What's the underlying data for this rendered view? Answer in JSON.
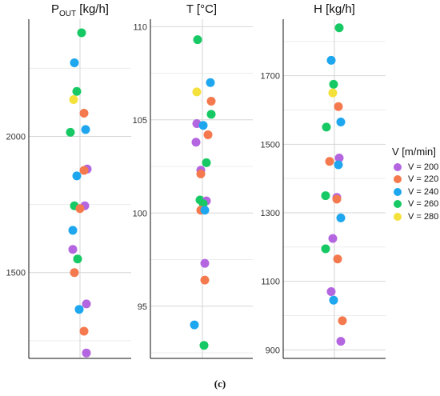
{
  "series_colors": {
    "200": "#b366e0",
    "220": "#f4794e",
    "240": "#1ea6ee",
    "260": "#17c964",
    "280": "#f5e13c"
  },
  "legend": {
    "title": "V [m/min]",
    "entries": [
      {
        "key": "200",
        "label": "V = 200"
      },
      {
        "key": "220",
        "label": "V = 220"
      },
      {
        "key": "240",
        "label": "V = 240"
      },
      {
        "key": "260",
        "label": "V = 260"
      },
      {
        "key": "280",
        "label": "V = 280"
      }
    ]
  },
  "caption": "(c)",
  "chart_data": [
    {
      "type": "scatter",
      "title_main": "P",
      "title_sub": "OUT",
      "title_unit": " [kg/h]",
      "ylim": [
        1185,
        2430
      ],
      "yticks": [
        1500,
        2000
      ],
      "ytick_labels": [
        "1500",
        "2000"
      ],
      "points": [
        {
          "series": "260",
          "value": 2380
        },
        {
          "series": "240",
          "value": 2270
        },
        {
          "series": "260",
          "value": 2165
        },
        {
          "series": "280",
          "value": 2135
        },
        {
          "series": "220",
          "value": 2085
        },
        {
          "series": "240",
          "value": 2025
        },
        {
          "series": "260",
          "value": 2015
        },
        {
          "series": "200",
          "value": 1880
        },
        {
          "series": "220",
          "value": 1875
        },
        {
          "series": "240",
          "value": 1855
        },
        {
          "series": "260",
          "value": 1745
        },
        {
          "series": "200",
          "value": 1745
        },
        {
          "series": "220",
          "value": 1735
        },
        {
          "series": "240",
          "value": 1655
        },
        {
          "series": "200",
          "value": 1585
        },
        {
          "series": "260",
          "value": 1550
        },
        {
          "series": "220",
          "value": 1500
        },
        {
          "series": "200",
          "value": 1385
        },
        {
          "series": "240",
          "value": 1365
        },
        {
          "series": "220",
          "value": 1285
        },
        {
          "series": "200",
          "value": 1205
        }
      ]
    },
    {
      "type": "scatter",
      "title_main": "T [°C]",
      "title_sub": "",
      "title_unit": "",
      "ylim": [
        92.2,
        110.4
      ],
      "yticks": [
        95,
        100,
        105,
        110
      ],
      "ytick_labels": [
        "95",
        "100",
        "105",
        "110"
      ],
      "points": [
        {
          "series": "260",
          "value": 109.3
        },
        {
          "series": "240",
          "value": 107.0
        },
        {
          "series": "280",
          "value": 106.5
        },
        {
          "series": "220",
          "value": 106.0
        },
        {
          "series": "260",
          "value": 105.3
        },
        {
          "series": "200",
          "value": 104.8
        },
        {
          "series": "240",
          "value": 104.7
        },
        {
          "series": "220",
          "value": 104.2
        },
        {
          "series": "200",
          "value": 103.8
        },
        {
          "series": "260",
          "value": 102.7
        },
        {
          "series": "200",
          "value": 102.3
        },
        {
          "series": "220",
          "value": 102.1
        },
        {
          "series": "260",
          "value": 100.7
        },
        {
          "series": "200",
          "value": 100.65
        },
        {
          "series": "260",
          "value": 100.5
        },
        {
          "series": "220",
          "value": 100.15
        },
        {
          "series": "240",
          "value": 100.15
        },
        {
          "series": "200",
          "value": 97.3
        },
        {
          "series": "220",
          "value": 96.4
        },
        {
          "series": "240",
          "value": 94.0
        },
        {
          "series": "260",
          "value": 92.9
        }
      ]
    },
    {
      "type": "scatter",
      "title_main": "H [kg/h]",
      "title_sub": "",
      "title_unit": "",
      "ylim": [
        875,
        1865
      ],
      "yticks": [
        900,
        1100,
        1300,
        1500,
        1700
      ],
      "ytick_labels": [
        "900",
        "1100",
        "1300",
        "1500",
        "1700"
      ],
      "points": [
        {
          "series": "260",
          "value": 1840
        },
        {
          "series": "240",
          "value": 1745
        },
        {
          "series": "260",
          "value": 1675
        },
        {
          "series": "280",
          "value": 1650
        },
        {
          "series": "220",
          "value": 1610
        },
        {
          "series": "240",
          "value": 1565
        },
        {
          "series": "260",
          "value": 1550
        },
        {
          "series": "200",
          "value": 1460
        },
        {
          "series": "220",
          "value": 1450
        },
        {
          "series": "240",
          "value": 1440
        },
        {
          "series": "260",
          "value": 1350
        },
        {
          "series": "200",
          "value": 1345
        },
        {
          "series": "220",
          "value": 1340
        },
        {
          "series": "240",
          "value": 1285
        },
        {
          "series": "200",
          "value": 1225
        },
        {
          "series": "260",
          "value": 1195
        },
        {
          "series": "220",
          "value": 1165
        },
        {
          "series": "200",
          "value": 1070
        },
        {
          "series": "240",
          "value": 1045
        },
        {
          "series": "220",
          "value": 985
        },
        {
          "series": "200",
          "value": 925
        }
      ]
    }
  ]
}
